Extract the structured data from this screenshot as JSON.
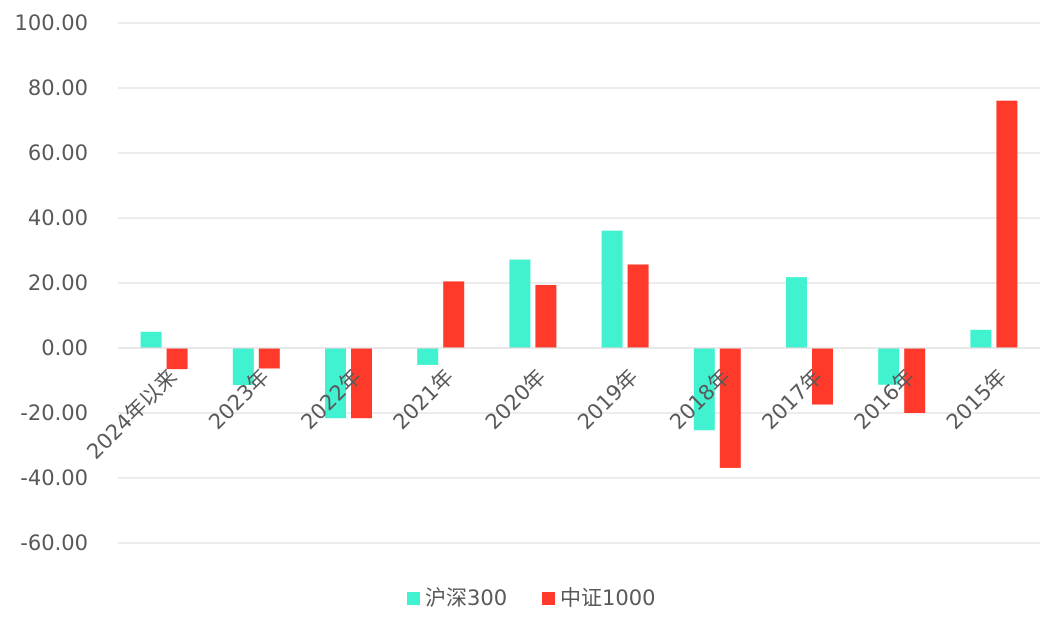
{
  "chart_data": {
    "type": "bar",
    "categories": [
      "2024年以来",
      "2023年",
      "2022年",
      "2021年",
      "2020年",
      "2019年",
      "2018年",
      "2017年",
      "2016年",
      "2015年"
    ],
    "series": [
      {
        "name": "沪深300",
        "color": "#40f2d0",
        "values": [
          5.0,
          -11.4,
          -21.6,
          -5.2,
          27.2,
          36.1,
          -25.3,
          21.8,
          -11.3,
          5.6
        ]
      },
      {
        "name": "中证1000",
        "color": "#ff3a2a",
        "values": [
          -6.5,
          -6.3,
          -21.6,
          20.5,
          19.4,
          25.7,
          -36.9,
          -17.4,
          -20.0,
          76.1
        ]
      }
    ],
    "y_ticks": [
      "100.00",
      "80.00",
      "60.00",
      "40.00",
      "20.00",
      "0.00",
      "-20.00",
      "-40.00",
      "-60.00"
    ],
    "ylim": [
      -60,
      100
    ],
    "grid": true,
    "legend_position": "bottom-center"
  }
}
